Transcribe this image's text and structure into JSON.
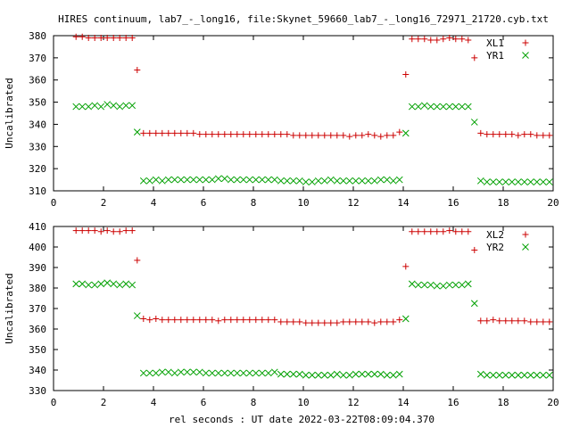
{
  "figure": {
    "title": "HIRES continuum, lab7_-_long16, file:Skynet_59660_lab7_-_long16_72971_21720.cyb.txt",
    "xlabel": "rel seconds : UT date 2022-03-22T08:09:04.370"
  },
  "colors": {
    "series_a": "#cc0000",
    "series_b": "#00a000",
    "axes": "#000000"
  },
  "chart_data": [
    {
      "type": "scatter",
      "ylabel": "Uncalibrated",
      "xlim": [
        0,
        20
      ],
      "ylim": [
        310,
        380
      ],
      "xticks": [
        0,
        2,
        4,
        6,
        8,
        10,
        12,
        14,
        16,
        18,
        20
      ],
      "yticks": [
        310,
        320,
        330,
        340,
        350,
        360,
        370,
        380
      ],
      "legend_position": "top-right",
      "series": [
        {
          "name": "XL1",
          "marker": "plus",
          "x": [
            0.9,
            1.15,
            1.4,
            1.65,
            1.9,
            2.15,
            2.4,
            2.65,
            2.9,
            3.15,
            3.35,
            3.6,
            3.85,
            4.1,
            4.35,
            4.6,
            4.85,
            5.1,
            5.35,
            5.6,
            5.85,
            6.1,
            6.35,
            6.6,
            6.85,
            7.1,
            7.35,
            7.6,
            7.85,
            8.1,
            8.35,
            8.6,
            8.85,
            9.1,
            9.35,
            9.6,
            9.85,
            10.1,
            10.35,
            10.6,
            10.85,
            11.1,
            11.35,
            11.6,
            11.85,
            12.1,
            12.35,
            12.6,
            12.85,
            13.1,
            13.35,
            13.6,
            13.85,
            14.1,
            14.35,
            14.6,
            14.85,
            15.1,
            15.35,
            15.6,
            15.85,
            16.1,
            16.35,
            16.6,
            16.85,
            17.1,
            17.35,
            17.6,
            17.85,
            18.1,
            18.35,
            18.6,
            18.85,
            19.1,
            19.35,
            19.6,
            19.85
          ],
          "y": [
            379.5,
            379.5,
            379,
            379,
            379,
            379,
            379,
            379,
            379,
            379,
            364.5,
            336,
            336,
            336,
            336,
            336,
            336,
            336,
            336,
            336,
            335.5,
            335.5,
            335.5,
            335.5,
            335.5,
            335.5,
            335.5,
            335.5,
            335.5,
            335.5,
            335.5,
            335.5,
            335.5,
            335.5,
            335.5,
            335,
            335,
            335,
            335,
            335,
            335,
            335,
            335,
            335,
            334.5,
            335,
            335,
            335.5,
            335,
            334.5,
            335,
            335,
            336.5,
            362.5,
            378.5,
            378.5,
            378.5,
            378,
            378,
            378.5,
            379,
            378.5,
            378.5,
            378,
            370,
            336,
            335.5,
            335.5,
            335.5,
            335.5,
            335.5,
            335,
            335.5,
            335.5,
            335,
            335,
            335
          ]
        },
        {
          "name": "YR1",
          "marker": "cross",
          "x": [
            0.9,
            1.15,
            1.4,
            1.65,
            1.9,
            2.15,
            2.4,
            2.65,
            2.9,
            3.15,
            3.35,
            3.6,
            3.85,
            4.1,
            4.35,
            4.6,
            4.85,
            5.1,
            5.35,
            5.6,
            5.85,
            6.1,
            6.35,
            6.6,
            6.85,
            7.1,
            7.35,
            7.6,
            7.85,
            8.1,
            8.35,
            8.6,
            8.85,
            9.1,
            9.35,
            9.6,
            9.85,
            10.1,
            10.35,
            10.6,
            10.85,
            11.1,
            11.35,
            11.6,
            11.85,
            12.1,
            12.35,
            12.6,
            12.85,
            13.1,
            13.35,
            13.6,
            13.85,
            14.1,
            14.35,
            14.6,
            14.85,
            15.1,
            15.35,
            15.6,
            15.85,
            16.1,
            16.35,
            16.6,
            16.85,
            17.1,
            17.35,
            17.6,
            17.85,
            18.1,
            18.35,
            18.6,
            18.85,
            19.1,
            19.35,
            19.6,
            19.85
          ],
          "y": [
            348,
            348,
            348,
            348.5,
            348,
            349,
            348.5,
            348,
            348.5,
            348.5,
            336.5,
            314.5,
            314.5,
            315,
            314.5,
            315,
            315,
            315,
            315,
            315,
            315,
            315,
            315,
            315.5,
            315.5,
            315,
            315,
            315,
            315,
            315,
            315,
            315,
            315,
            314.5,
            314.5,
            314.5,
            314.5,
            314,
            314,
            314.5,
            314.5,
            315,
            314.5,
            314.5,
            314.5,
            314.5,
            314.5,
            314.5,
            314.5,
            315,
            315,
            314.5,
            315,
            336,
            348,
            348,
            348.5,
            348,
            348,
            348,
            348,
            348,
            348,
            348,
            341,
            314.5,
            314,
            314,
            314,
            314,
            314,
            314,
            314,
            314,
            314,
            314,
            314
          ]
        }
      ]
    },
    {
      "type": "scatter",
      "ylabel": "Uncalibrated",
      "xlim": [
        0,
        20
      ],
      "ylim": [
        330,
        410
      ],
      "xticks": [
        0,
        2,
        4,
        6,
        8,
        10,
        12,
        14,
        16,
        18,
        20
      ],
      "yticks": [
        330,
        340,
        350,
        360,
        370,
        380,
        390,
        400,
        410
      ],
      "legend_position": "top-right",
      "series": [
        {
          "name": "XL2",
          "marker": "plus",
          "x": [
            0.9,
            1.15,
            1.4,
            1.65,
            1.9,
            2.15,
            2.4,
            2.65,
            2.9,
            3.15,
            3.35,
            3.6,
            3.85,
            4.1,
            4.35,
            4.6,
            4.85,
            5.1,
            5.35,
            5.6,
            5.85,
            6.1,
            6.35,
            6.6,
            6.85,
            7.1,
            7.35,
            7.6,
            7.85,
            8.1,
            8.35,
            8.6,
            8.85,
            9.1,
            9.35,
            9.6,
            9.85,
            10.1,
            10.35,
            10.6,
            10.85,
            11.1,
            11.35,
            11.6,
            11.85,
            12.1,
            12.35,
            12.6,
            12.85,
            13.1,
            13.35,
            13.6,
            13.85,
            14.1,
            14.35,
            14.6,
            14.85,
            15.1,
            15.35,
            15.6,
            15.85,
            16.1,
            16.35,
            16.6,
            16.85,
            17.1,
            17.35,
            17.6,
            17.85,
            18.1,
            18.35,
            18.6,
            18.85,
            19.1,
            19.35,
            19.6,
            19.85
          ],
          "y": [
            408,
            408,
            408,
            408,
            407.5,
            408,
            407.5,
            407.5,
            408,
            408,
            393.5,
            365,
            364.5,
            365,
            364.5,
            364.5,
            364.5,
            364.5,
            364.5,
            364.5,
            364.5,
            364.5,
            364.5,
            364,
            364.5,
            364.5,
            364.5,
            364.5,
            364.5,
            364.5,
            364.5,
            364.5,
            364.5,
            363.5,
            363.5,
            363.5,
            363.5,
            363,
            363,
            363,
            363,
            363,
            363,
            363.5,
            363.5,
            363.5,
            363.5,
            363.5,
            363,
            363.5,
            363.5,
            363.5,
            364.5,
            390.5,
            407.5,
            407.5,
            407.5,
            407.5,
            407.5,
            407.5,
            408,
            407.5,
            407.5,
            407.5,
            398.5,
            364,
            364,
            364.5,
            364,
            364,
            364,
            364,
            364,
            363.5,
            363.5,
            363.5,
            363.5
          ]
        },
        {
          "name": "YR2",
          "marker": "cross",
          "x": [
            0.9,
            1.15,
            1.4,
            1.65,
            1.9,
            2.15,
            2.4,
            2.65,
            2.9,
            3.15,
            3.35,
            3.6,
            3.85,
            4.1,
            4.35,
            4.6,
            4.85,
            5.1,
            5.35,
            5.6,
            5.85,
            6.1,
            6.35,
            6.6,
            6.85,
            7.1,
            7.35,
            7.6,
            7.85,
            8.1,
            8.35,
            8.6,
            8.85,
            9.1,
            9.35,
            9.6,
            9.85,
            10.1,
            10.35,
            10.6,
            10.85,
            11.1,
            11.35,
            11.6,
            11.85,
            12.1,
            12.35,
            12.6,
            12.85,
            13.1,
            13.35,
            13.6,
            13.85,
            14.1,
            14.35,
            14.6,
            14.85,
            15.1,
            15.35,
            15.6,
            15.85,
            16.1,
            16.35,
            16.6,
            16.85,
            17.1,
            17.35,
            17.6,
            17.85,
            18.1,
            18.35,
            18.6,
            18.85,
            19.1,
            19.35,
            19.6,
            19.85
          ],
          "y": [
            382,
            382,
            381.5,
            381.5,
            382,
            382.5,
            382,
            381.5,
            382,
            381.5,
            366.5,
            338.5,
            338.5,
            338.5,
            339,
            339,
            338.5,
            339,
            339,
            339,
            339,
            338.5,
            338.5,
            338.5,
            338.5,
            338.5,
            338.5,
            338.5,
            338.5,
            338.5,
            338.5,
            338.5,
            339,
            338,
            338,
            338,
            338,
            337.5,
            337.5,
            337.5,
            337.5,
            337.5,
            338,
            337.5,
            337.5,
            338,
            338,
            338,
            338,
            338,
            337.5,
            337.5,
            338,
            365,
            382,
            381.5,
            381.5,
            381.5,
            381,
            381,
            381.5,
            381.5,
            381.5,
            382,
            372.5,
            338,
            337.5,
            337.5,
            337.5,
            337.5,
            337.5,
            337.5,
            337.5,
            337.5,
            337.5,
            337.5,
            337.5
          ]
        }
      ]
    }
  ]
}
